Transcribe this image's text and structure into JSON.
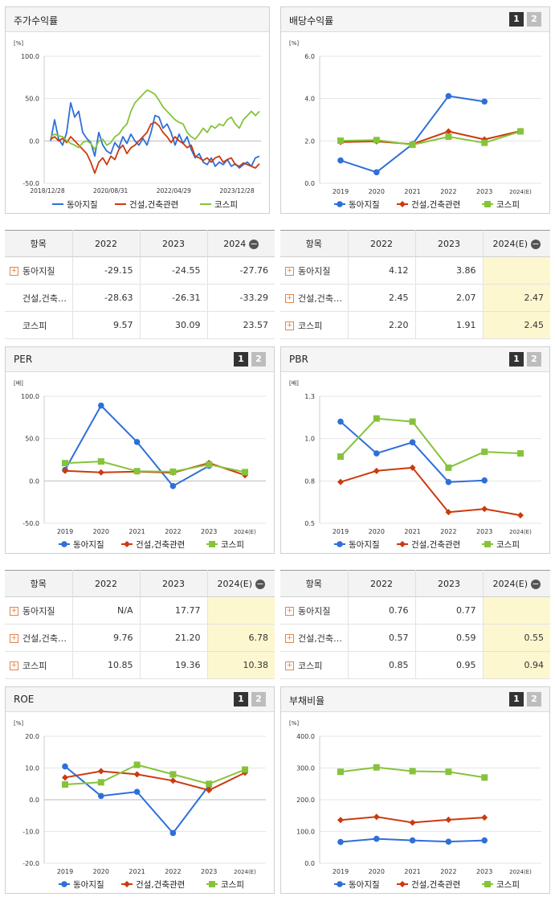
{
  "colors": {
    "dongah": "#2e6fd9",
    "construction": "#cc3a0e",
    "kospi": "#86c33b",
    "header_bg": "#f5f5f5",
    "estimate_bg": "#fdf7cf"
  },
  "legend": [
    "동아지질",
    "건설,건축관련",
    "코스피"
  ],
  "pager": {
    "one": "1",
    "two": "2"
  },
  "charts": {
    "stock": {
      "title": "주가수익률",
      "unit": "[%]",
      "chart_data": {
        "type": "line",
        "ylim": [
          -50,
          100
        ],
        "yticks": [
          "100.0",
          "50.0",
          "0.0",
          "-50.0"
        ],
        "xticks": [
          "2018/12/28",
          "2020/08/31",
          "2022/04/29",
          "2023/12/28"
        ],
        "series": [
          {
            "name": "동아지질",
            "values": [
              0,
              25,
              2,
              -5,
              10,
              45,
              28,
              35,
              10,
              3,
              -2,
              -18,
              10,
              -5,
              -12,
              -15,
              -2,
              -8,
              5,
              -3,
              8,
              0,
              -5,
              3,
              -5,
              10,
              30,
              28,
              15,
              20,
              10,
              -5,
              8,
              -3,
              5,
              -10,
              -20,
              -15,
              -25,
              -28,
              -20,
              -30,
              -25,
              -28,
              -22,
              -30,
              -27,
              -32,
              -28,
              -25,
              -30,
              -20,
              -18
            ]
          },
          {
            "name": "건설,건축관련",
            "values": [
              2,
              5,
              0,
              3,
              -2,
              5,
              0,
              -5,
              -10,
              -15,
              -25,
              -38,
              -25,
              -20,
              -28,
              -18,
              -22,
              -10,
              -5,
              -15,
              -8,
              -5,
              0,
              5,
              10,
              20,
              22,
              18,
              10,
              5,
              -2,
              5,
              0,
              -3,
              -8,
              -5,
              -18,
              -20,
              -23,
              -20,
              -25,
              -20,
              -18,
              -25,
              -22,
              -20,
              -28,
              -30,
              -26,
              -28,
              -30,
              -32,
              -27
            ]
          },
          {
            "name": "코스피",
            "values": [
              5,
              8,
              6,
              5,
              0,
              -3,
              -5,
              -8,
              -2,
              0,
              -3,
              -10,
              0,
              2,
              -5,
              -2,
              5,
              8,
              15,
              20,
              35,
              45,
              50,
              55,
              60,
              58,
              55,
              48,
              40,
              35,
              30,
              25,
              22,
              20,
              10,
              5,
              2,
              8,
              15,
              10,
              18,
              15,
              20,
              18,
              25,
              28,
              20,
              15,
              25,
              30,
              35,
              30,
              35
            ]
          }
        ]
      }
    },
    "dividend": {
      "title": "배당수익률",
      "unit": "[%]",
      "chart_data": {
        "type": "line",
        "ylim": [
          0,
          6
        ],
        "yticks": [
          "6.0",
          "4.0",
          "2.0",
          "0.0"
        ],
        "categories": [
          "2019",
          "2020",
          "2021",
          "2022",
          "2023",
          "2024(E)"
        ],
        "series": [
          {
            "name": "동아지질",
            "values": [
              1.08,
              0.52,
              1.85,
              4.12,
              3.86,
              null
            ]
          },
          {
            "name": "건설,건축관련",
            "values": [
              1.95,
              1.98,
              1.85,
              2.45,
              2.07,
              2.47
            ]
          },
          {
            "name": "코스피",
            "values": [
              2.01,
              2.04,
              1.82,
              2.2,
              1.91,
              2.45
            ]
          }
        ]
      }
    },
    "per": {
      "title": "PER",
      "unit": "[배]",
      "chart_data": {
        "type": "line",
        "ylim": [
          -50,
          100
        ],
        "yticks": [
          "100.0",
          "50.0",
          "0.0",
          "-50.0"
        ],
        "categories": [
          "2019",
          "2020",
          "2021",
          "2022",
          "2023",
          "2024(E)"
        ],
        "series": [
          {
            "name": "동아지질",
            "values": [
              13,
              89,
              46,
              -6,
              17.77,
              null
            ]
          },
          {
            "name": "건설,건축관련",
            "values": [
              12,
              10,
              11,
              9.76,
              21.2,
              6.78
            ]
          },
          {
            "name": "코스피",
            "values": [
              21,
              23,
              11.5,
              10.85,
              19.36,
              10.38
            ]
          }
        ]
      }
    },
    "pbr": {
      "title": "PBR",
      "unit": "[배]",
      "chart_data": {
        "type": "line",
        "ylim": [
          0.5,
          1.3
        ],
        "yticks": [
          "1.3",
          "1.0",
          "0.8",
          "0.5"
        ],
        "categories": [
          "2019",
          "2020",
          "2021",
          "2022",
          "2023",
          "2024(E)"
        ],
        "series": [
          {
            "name": "동아지질",
            "values": [
              1.14,
              0.94,
              1.01,
              0.76,
              0.77,
              null
            ]
          },
          {
            "name": "건설,건축관련",
            "values": [
              0.76,
              0.83,
              0.85,
              0.57,
              0.59,
              0.55
            ]
          },
          {
            "name": "코스피",
            "values": [
              0.92,
              1.16,
              1.14,
              0.85,
              0.95,
              0.94
            ]
          }
        ]
      }
    },
    "roe": {
      "title": "ROE",
      "unit": "[%]",
      "chart_data": {
        "type": "line",
        "ylim": [
          -20,
          20
        ],
        "yticks": [
          "20.0",
          "10.0",
          "0.0",
          "-10.0",
          "-20.0"
        ],
        "categories": [
          "2019",
          "2020",
          "2021",
          "2022",
          "2023",
          "2024(E)"
        ],
        "series": [
          {
            "name": "동아지질",
            "values": [
              10.5,
              1.2,
              2.5,
              -10.5,
              4.5,
              null
            ]
          },
          {
            "name": "건설,건축관련",
            "values": [
              7,
              9,
              8,
              6,
              3,
              8.5
            ]
          },
          {
            "name": "코스피",
            "values": [
              4.8,
              5.5,
              11,
              8,
              5,
              9.5
            ]
          }
        ]
      }
    },
    "debt": {
      "title": "부채비율",
      "unit": "[%]",
      "chart_data": {
        "type": "line",
        "ylim": [
          0,
          400
        ],
        "yticks": [
          "400.0",
          "300.0",
          "200.0",
          "100.0",
          "0.0"
        ],
        "categories": [
          "2019",
          "2020",
          "2021",
          "2022",
          "2023",
          "2024(E)"
        ],
        "series": [
          {
            "name": "동아지질",
            "values": [
              67,
              77,
              72,
              68,
              72,
              null
            ]
          },
          {
            "name": "건설,건축관련",
            "values": [
              136,
              146,
              128,
              137,
              144,
              null
            ]
          },
          {
            "name": "코스피",
            "values": [
              288,
              302,
              290,
              288,
              270,
              null
            ]
          }
        ]
      }
    }
  },
  "tables": {
    "stock": {
      "headers": [
        "항목",
        "2022",
        "2023",
        "2024"
      ],
      "rows": [
        {
          "label": "동아지질",
          "plus": true,
          "v": [
            "-29.15",
            "-24.55",
            "-27.76"
          ]
        },
        {
          "label": "건설,건축…",
          "plus": false,
          "v": [
            "-28.63",
            "-26.31",
            "-33.29"
          ]
        },
        {
          "label": "코스피",
          "plus": false,
          "v": [
            "9.57",
            "30.09",
            "23.57"
          ]
        }
      ]
    },
    "dividend": {
      "headers": [
        "항목",
        "2022",
        "2023",
        "2024(E)"
      ],
      "rows": [
        {
          "label": "동아지질",
          "plus": true,
          "v": [
            "4.12",
            "3.86",
            ""
          ]
        },
        {
          "label": "건설,건축…",
          "plus": true,
          "v": [
            "2.45",
            "2.07",
            "2.47"
          ]
        },
        {
          "label": "코스피",
          "plus": true,
          "v": [
            "2.20",
            "1.91",
            "2.45"
          ]
        }
      ]
    },
    "per": {
      "headers": [
        "항목",
        "2022",
        "2023",
        "2024(E)"
      ],
      "rows": [
        {
          "label": "동아지질",
          "plus": true,
          "v": [
            "N/A",
            "17.77",
            ""
          ]
        },
        {
          "label": "건설,건축…",
          "plus": true,
          "v": [
            "9.76",
            "21.20",
            "6.78"
          ]
        },
        {
          "label": "코스피",
          "plus": true,
          "v": [
            "10.85",
            "19.36",
            "10.38"
          ]
        }
      ]
    },
    "pbr": {
      "headers": [
        "항목",
        "2022",
        "2023",
        "2024(E)"
      ],
      "rows": [
        {
          "label": "동아지질",
          "plus": true,
          "v": [
            "0.76",
            "0.77",
            ""
          ]
        },
        {
          "label": "건설,건축…",
          "plus": true,
          "v": [
            "0.57",
            "0.59",
            "0.55"
          ]
        },
        {
          "label": "코스피",
          "plus": true,
          "v": [
            "0.85",
            "0.95",
            "0.94"
          ]
        }
      ]
    }
  }
}
